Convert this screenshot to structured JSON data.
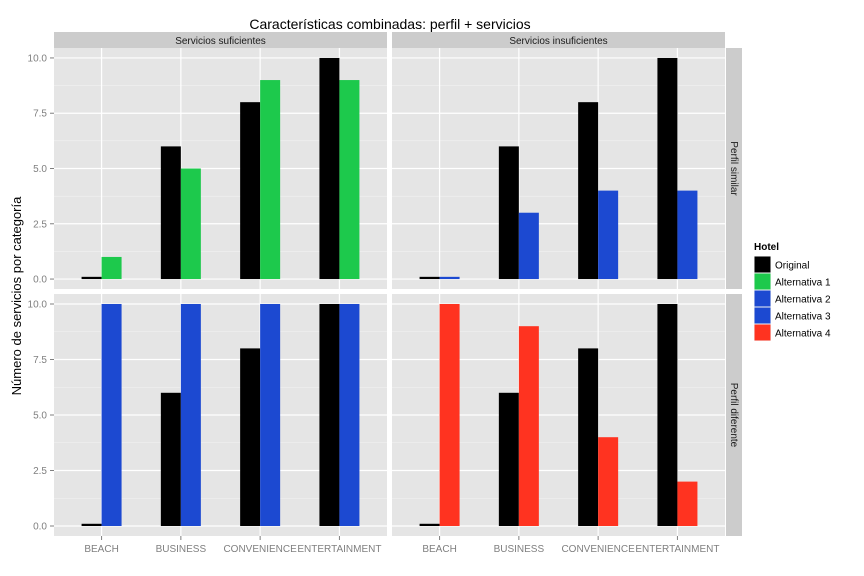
{
  "chart_data": {
    "type": "bar",
    "title": "Características combinadas: perfil + servicios",
    "xlabel": "",
    "ylabel": "Número de servicios por categoría",
    "categories": [
      "BEACH",
      "BUSINESS",
      "CONVENIENCE",
      "ENTERTAINMENT"
    ],
    "ylim": [
      0,
      10
    ],
    "yticks": [
      "0.0",
      "2.5",
      "5.0",
      "7.5",
      "10.0"
    ],
    "grid": true,
    "facet_columns": [
      "Servicios suficientes",
      "Servicios insuficientes"
    ],
    "facet_rows": [
      "Perfil similar",
      "Perfil diferente"
    ],
    "legend": {
      "title": "Hotel",
      "placement": "right",
      "items": [
        {
          "name": "Original",
          "color": "#000000"
        },
        {
          "name": "Alternativa 1",
          "color": "#1dc94c"
        },
        {
          "name": "Alternativa 2",
          "color": "#1c49d1"
        },
        {
          "name": "Alternativa 3",
          "color": "#1c49d1"
        },
        {
          "name": "Alternativa 4",
          "color": "#ff3320"
        }
      ]
    },
    "panels": [
      {
        "column": "Servicios suficientes",
        "row": "Perfil similar",
        "series": [
          {
            "name": "Original",
            "color": "#000000",
            "values": [
              0.1,
              6,
              8,
              10
            ]
          },
          {
            "name": "Alternativa 1",
            "color": "#1dc94c",
            "values": [
              1,
              5,
              9,
              9
            ]
          }
        ]
      },
      {
        "column": "Servicios insuficientes",
        "row": "Perfil similar",
        "series": [
          {
            "name": "Original",
            "color": "#000000",
            "values": [
              0.1,
              6,
              8,
              10
            ]
          },
          {
            "name": "Alternativa 2",
            "color": "#1c49d1",
            "values": [
              0.1,
              3,
              4,
              4
            ]
          }
        ]
      },
      {
        "column": "Servicios suficientes",
        "row": "Perfil diferente",
        "series": [
          {
            "name": "Original",
            "color": "#000000",
            "values": [
              0.1,
              6,
              8,
              10
            ]
          },
          {
            "name": "Alternativa 3",
            "color": "#1c49d1",
            "values": [
              10,
              10,
              10,
              10
            ]
          }
        ]
      },
      {
        "column": "Servicios insuficientes",
        "row": "Perfil diferente",
        "series": [
          {
            "name": "Original",
            "color": "#000000",
            "values": [
              0.1,
              6,
              8,
              10
            ]
          },
          {
            "name": "Alternativa 4",
            "color": "#ff3320",
            "values": [
              10,
              9,
              4,
              2
            ]
          }
        ]
      }
    ]
  }
}
